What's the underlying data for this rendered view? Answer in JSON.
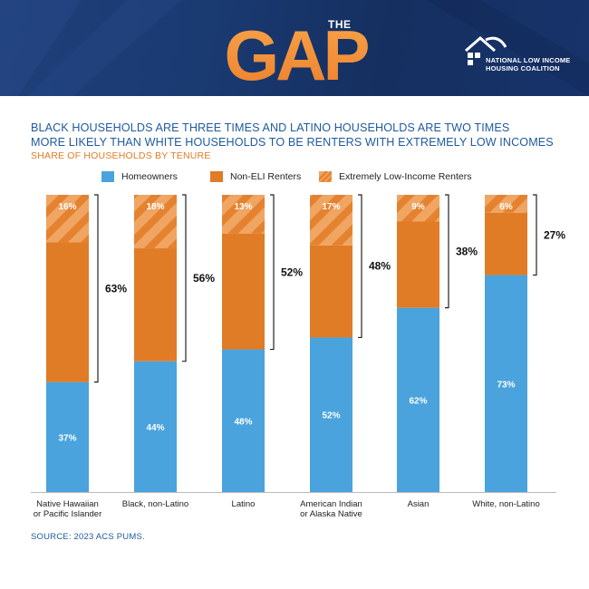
{
  "header": {
    "logo_the": "THE",
    "logo_gap": "GAP",
    "org_line1": "NATIONAL LOW INCOME",
    "org_line2": "HOUSING COALITION"
  },
  "title_line1": "BLACK HOUSEHOLDS ARE THREE TIMES AND LATINO HOUSEHOLDS ARE TWO TIMES",
  "title_line2": "MORE LIKELY THAN WHITE HOUSEHOLDS TO BE RENTERS WITH EXTREMELY LOW INCOMES",
  "subtitle": "SHARE OF HOUSEHOLDS BY TENURE",
  "source": "SOURCE: 2023 ACS PUMS.",
  "colors": {
    "homeowners": "#4aa3dc",
    "non_eli": "#e07b26",
    "eli_base": "#f0a562",
    "eli_stripe": "#e4822f",
    "title": "#1f5a9e",
    "subtitle": "#e07b26"
  },
  "chart_data": {
    "type": "bar",
    "stacked": true,
    "title": "BLACK HOUSEHOLDS ARE THREE TIMES AND LATINO HOUSEHOLDS ARE TWO TIMES MORE LIKELY THAN WHITE HOUSEHOLDS TO BE RENTERS WITH EXTREMELY LOW INCOMES",
    "subtitle": "SHARE OF HOUSEHOLDS BY TENURE",
    "categories": [
      [
        "Native Hawaiian",
        "or Pacific Islander"
      ],
      [
        "Black, non-Latino"
      ],
      [
        "Latino"
      ],
      [
        "American Indian",
        "or Alaska Native"
      ],
      [
        "Asian"
      ],
      [
        "White, non-Latino"
      ]
    ],
    "series": [
      {
        "name": "Homeowners",
        "values": [
          37,
          44,
          48,
          52,
          62,
          73
        ],
        "labels": [
          "37%",
          "44%",
          "48%",
          "52%",
          "62%",
          "73%"
        ]
      },
      {
        "name": "Non-ELI Renters",
        "values": [
          47,
          38,
          39,
          31,
          29,
          21
        ]
      },
      {
        "name": "Extremely Low-Income Renters",
        "values": [
          16,
          18,
          13,
          17,
          9,
          6
        ],
        "labels": [
          "16%",
          "18%",
          "13%",
          "17%",
          "9%",
          "6%"
        ]
      }
    ],
    "renter_totals": [
      63,
      56,
      52,
      48,
      38,
      27
    ],
    "renter_total_labels": [
      "63%",
      "56%",
      "52%",
      "48%",
      "38%",
      "27%"
    ],
    "ylim": [
      0,
      100
    ],
    "legend": "top-center"
  }
}
